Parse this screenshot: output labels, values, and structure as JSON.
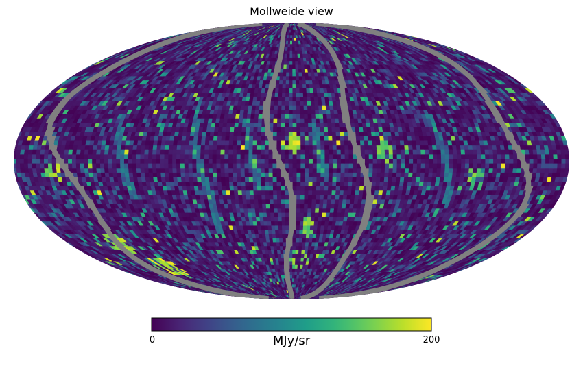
{
  "chart_data": {
    "type": "heatmap",
    "projection": "mollweide",
    "title": "Mollweide view",
    "colormap": "viridis",
    "background_value_range": [
      0,
      60
    ],
    "masked_color": "#808080",
    "colorbar": {
      "label": "MJy/sr",
      "vmin": 0,
      "vmax": 200,
      "tick_labels": [
        "0",
        "200"
      ],
      "orientation": "horizontal",
      "placement": "bottom"
    },
    "masked_stripes": [
      {
        "name": "central-stripe",
        "lon_deg": 8,
        "drift_deg": 12,
        "wobble_deg": 6
      },
      {
        "name": "right-stripe",
        "lon_deg": -45,
        "drift_deg": 10,
        "wobble_deg": 5
      },
      {
        "name": "left-stripe",
        "lon_deg": 150,
        "drift_deg": 20,
        "wobble_deg": 8
      },
      {
        "name": "far-right-stripe",
        "lon_deg": -150,
        "drift_deg": 10,
        "wobble_deg": 6
      }
    ],
    "faint_arcs": [
      {
        "lon_deg": 110,
        "lat_range": [
          -20,
          25
        ]
      },
      {
        "lon_deg": 60,
        "lat_range": [
          -40,
          35
        ]
      },
      {
        "lon_deg": 25,
        "lat_range": [
          -15,
          20
        ]
      },
      {
        "lon_deg": -20,
        "lat_range": [
          -10,
          20
        ]
      },
      {
        "lon_deg": -100,
        "lat_range": [
          -25,
          25
        ]
      }
    ],
    "bright_features": [
      {
        "lon_deg": 140,
        "lat_deg": -45,
        "value": 200
      },
      {
        "lon_deg": 125,
        "lat_deg": -60,
        "value": 200
      },
      {
        "lon_deg": 155,
        "lat_deg": -5,
        "value": 190
      },
      {
        "lon_deg": -12,
        "lat_deg": -35,
        "value": 180
      },
      {
        "lon_deg": -5,
        "lat_deg": -55,
        "value": 180
      },
      {
        "lon_deg": 0,
        "lat_deg": 10,
        "value": 200
      },
      {
        "lon_deg": -60,
        "lat_deg": 5,
        "value": 170
      },
      {
        "lon_deg": -120,
        "lat_deg": -10,
        "value": 170
      }
    ]
  }
}
